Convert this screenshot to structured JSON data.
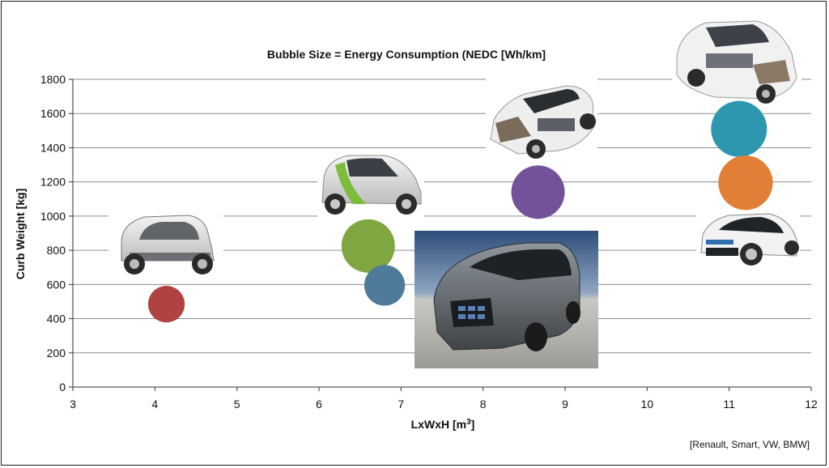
{
  "chart_data": {
    "type": "scatter",
    "subtype": "bubble",
    "title": "Bubble Size = Energy Consumption  (NEDC [Wh/km]",
    "xlabel": "LxWxH [m³]",
    "ylabel": "Curb Weight [kg]",
    "xlim": [
      3,
      12
    ],
    "ylim": [
      0,
      1800
    ],
    "xticks": [
      3,
      4,
      5,
      6,
      7,
      8,
      9,
      10,
      11,
      12
    ],
    "yticks": [
      0,
      200,
      400,
      600,
      800,
      1000,
      1200,
      1400,
      1600,
      1800
    ],
    "grid": "horizontal",
    "legend": "none",
    "source": "[Renault, Smart, VW, BMW]",
    "points": [
      {
        "x": 4.14,
        "y": 485,
        "size": 0.72,
        "color": "#b04242"
      },
      {
        "x": 6.6,
        "y": 825,
        "size": 1.05,
        "color": "#7fa640"
      },
      {
        "x": 6.8,
        "y": 595,
        "size": 0.8,
        "color": "#4f7b9a"
      },
      {
        "x": 8.67,
        "y": 1140,
        "size": 1.05,
        "color": "#73529a"
      },
      {
        "x": 11.12,
        "y": 1510,
        "size": 1.1,
        "color": "#2e97b0"
      },
      {
        "x": 11.2,
        "y": 1195,
        "size": 1.07,
        "color": "#e07f35"
      }
    ],
    "images": [
      {
        "name": "renault-twizy-image"
      },
      {
        "name": "smart-fortwo-ed-image"
      },
      {
        "name": "vw-e-up-cutaway-image"
      },
      {
        "name": "vw-e-golf-cutaway-image"
      },
      {
        "name": "bmw-i3-image"
      },
      {
        "name": "prototype-vehicle-image"
      }
    ]
  }
}
